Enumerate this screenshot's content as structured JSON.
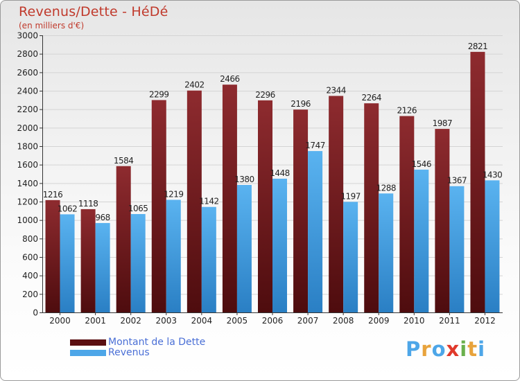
{
  "chart_data": {
    "type": "bar",
    "title": "Revenus/Dette - HéDé",
    "subtitle": "(en milliers d'€)",
    "categories": [
      "2000",
      "2001",
      "2002",
      "2003",
      "2004",
      "2005",
      "2006",
      "2007",
      "2008",
      "2009",
      "2010",
      "2011",
      "2012"
    ],
    "series": [
      {
        "name": "Montant de la Dette",
        "color": "#7a1f22",
        "values": [
          1216,
          1118,
          1584,
          2299,
          2402,
          2466,
          2296,
          2196,
          2344,
          2264,
          2126,
          1987,
          2821
        ]
      },
      {
        "name": "Revenus",
        "color": "#4da6e8",
        "values": [
          1062,
          968,
          1065,
          1219,
          1142,
          1380,
          1448,
          1747,
          1197,
          1288,
          1546,
          1367,
          1430
        ]
      }
    ],
    "ylim": [
      0,
      3000
    ],
    "yticks": [
      0,
      200,
      400,
      600,
      800,
      1000,
      1200,
      1400,
      1600,
      1800,
      2000,
      2200,
      2400,
      2600,
      2800,
      3000
    ],
    "grid": true,
    "legend": "bottom-left"
  },
  "logo": {
    "letters": [
      "P",
      "r",
      "o",
      "x",
      "i",
      "t",
      "i"
    ],
    "colors": [
      "#4da6e8",
      "#e8a33c",
      "#4da6e8",
      "#e0392b",
      "#6ab04c",
      "#e8a33c",
      "#4da6e8"
    ]
  }
}
